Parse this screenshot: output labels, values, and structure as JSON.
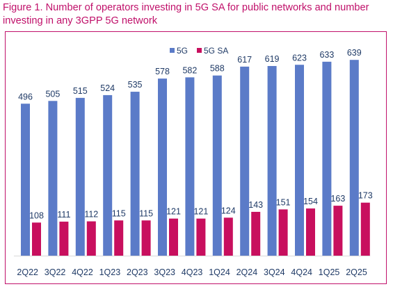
{
  "figure": {
    "title": "Figure 1. Number of operators investing in 5G SA for public networks and number investing in any 3GPP 5G network"
  },
  "colors": {
    "title": "#c0106a",
    "frame": "#c0106a",
    "series_5g": "#5b7bc8",
    "series_5g_sa": "#c80f5e",
    "labels": "#1f3a66",
    "baseline": "#d9d9d9"
  },
  "chart_data": {
    "type": "bar",
    "title": "",
    "xlabel": "",
    "ylabel": "",
    "ylim": [
      0,
      700
    ],
    "grid": false,
    "legend": "top-center",
    "categories": [
      "2Q22",
      "3Q22",
      "4Q22",
      "1Q23",
      "2Q23",
      "3Q23",
      "4Q23",
      "1Q24",
      "2Q24",
      "3Q24",
      "4Q24",
      "1Q25",
      "2Q25"
    ],
    "series": [
      {
        "name": "5G",
        "color": "#5b7bc8",
        "values": [
          496,
          505,
          515,
          524,
          535,
          578,
          582,
          588,
          617,
          619,
          623,
          633,
          639
        ]
      },
      {
        "name": "5G SA",
        "color": "#c80f5e",
        "values": [
          108,
          111,
          112,
          115,
          115,
          121,
          121,
          124,
          143,
          151,
          154,
          163,
          173
        ]
      }
    ]
  }
}
